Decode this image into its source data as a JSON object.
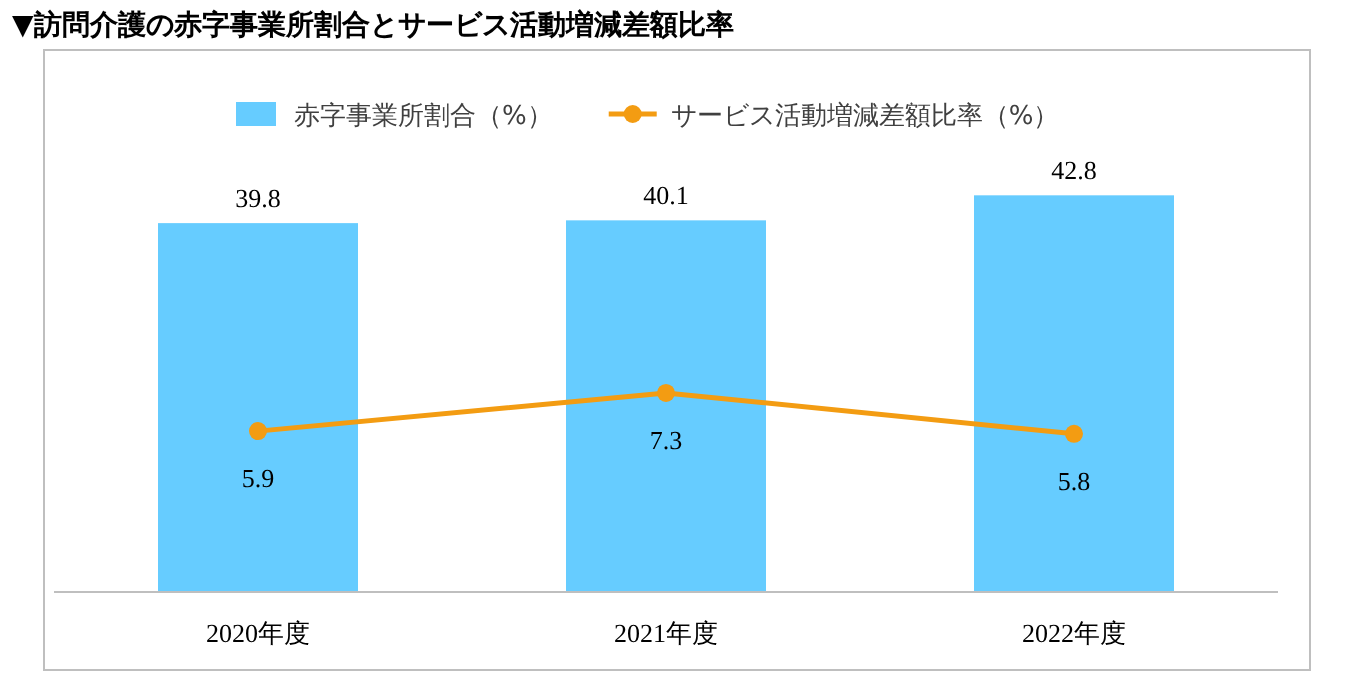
{
  "chart_data": {
    "type": "bar",
    "title": "▼訪問介護の赤字事業所割合とサービス活動増減差額比率",
    "categories": [
      "2020年度",
      "2021年度",
      "2022年度"
    ],
    "series": [
      {
        "name": "赤字事業所割合（%）",
        "color": "#66ccff",
        "values": [
          39.8,
          40.1,
          42.8
        ]
      },
      {
        "name": "サービス活動増減差額比率（%）",
        "type": "line",
        "axis": "y2",
        "color": "#f39c12",
        "values": [
          5.9,
          7.3,
          5.8
        ]
      }
    ],
    "marker": "circle",
    "data_labels": true,
    "legend": "top",
    "grid": false,
    "tick_labels": "x"
  }
}
